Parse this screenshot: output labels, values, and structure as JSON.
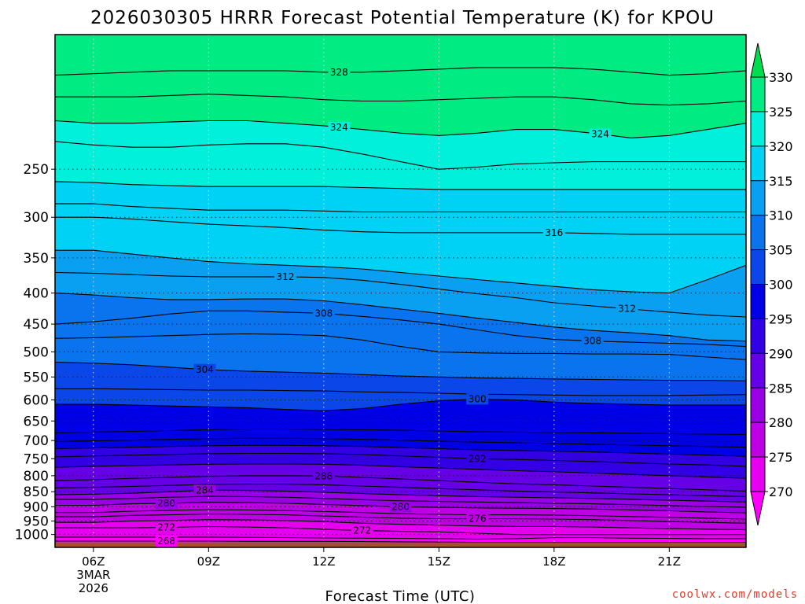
{
  "title": "2026030305 HRRR Forecast Potential Temperature (K) for KPOU",
  "credit": "coolwx.com/models",
  "chart_data": {
    "type": "contour",
    "title": "2026030305 HRRR Forecast Potential Temperature (K) for KPOU",
    "xlabel": "Forecast Time (UTC)",
    "ylabel": "",
    "x_unit": "hour UTC, 3 Mar 2026",
    "xlim": [
      5,
      23
    ],
    "y_unit": "hPa",
    "ylim": [
      1050,
      150
    ],
    "y_scale": "log",
    "x_ticks": [
      {
        "value": 6,
        "label": "06Z",
        "sub": [
          "3MAR",
          "2026"
        ]
      },
      {
        "value": 9,
        "label": "09Z"
      },
      {
        "value": 12,
        "label": "12Z"
      },
      {
        "value": 15,
        "label": "15Z"
      },
      {
        "value": 18,
        "label": "18Z"
      },
      {
        "value": 21,
        "label": "21Z"
      }
    ],
    "y_ticks": [
      {
        "value": 250,
        "label": "250"
      },
      {
        "value": 300,
        "label": "300"
      },
      {
        "value": 350,
        "label": "350"
      },
      {
        "value": 400,
        "label": "400"
      },
      {
        "value": 450,
        "label": "450"
      },
      {
        "value": 500,
        "label": "500"
      },
      {
        "value": 550,
        "label": "550"
      },
      {
        "value": 600,
        "label": "600"
      },
      {
        "value": 650,
        "label": "650"
      },
      {
        "value": 700,
        "label": "700"
      },
      {
        "value": 750,
        "label": "750"
      },
      {
        "value": 800,
        "label": "800"
      },
      {
        "value": 850,
        "label": "850"
      },
      {
        "value": 900,
        "label": "900"
      },
      {
        "value": 950,
        "label": "950"
      },
      {
        "value": 1000,
        "label": "1000"
      }
    ],
    "grid": true,
    "surface_pressure_hPa": 1032,
    "surface_color": "#a0522d",
    "colorbar": {
      "position": "right",
      "ticks": [
        "270",
        "275",
        "280",
        "285",
        "290",
        "295",
        "300",
        "305",
        "310",
        "315",
        "320",
        "325",
        "330"
      ],
      "levels": [
        270,
        275,
        280,
        285,
        290,
        295,
        300,
        305,
        310,
        315,
        320,
        325,
        330
      ],
      "colors": [
        "#ff00ff",
        "#e600f0",
        "#bf00e6",
        "#9900e6",
        "#6600e6",
        "#3300e6",
        "#0000e6",
        "#0a46e8",
        "#0a73ee",
        "#0aa0f2",
        "#00d2f5",
        "#00f0dc",
        "#00eb82",
        "#00dc50"
      ]
    },
    "contour_interval": 2,
    "x": [
      5,
      6,
      7,
      8,
      9,
      10,
      11,
      12,
      13,
      14,
      15,
      16,
      17,
      18,
      19,
      20,
      21,
      22,
      23
    ],
    "series": [
      {
        "name": "268",
        "pressure": [
          1025,
          1025,
          1025,
          1025,
          1025,
          1026,
          1026,
          1026,
          1027,
          1028,
          1029,
          1030,
          1030,
          1030,
          1030,
          1030,
          1030,
          1030,
          1030
        ]
      },
      {
        "name": "270",
        "pressure": [
          1010,
          1010,
          1010,
          1010,
          1010,
          1011,
          1012,
          1013,
          1014,
          1015,
          1016,
          1018,
          1016,
          1012,
          1012,
          1014,
          1015,
          1016,
          1016
        ]
      },
      {
        "name": "272",
        "pressure": [
          975,
          975,
          975,
          973,
          970,
          972,
          975,
          980,
          985,
          988,
          990,
          995,
          1000,
          1000,
          1000,
          1000,
          1000,
          1000,
          1000
        ]
      },
      {
        "name": "274",
        "pressure": [
          955,
          955,
          950,
          948,
          945,
          946,
          948,
          952,
          958,
          962,
          965,
          968,
          970,
          970,
          972,
          975,
          978,
          980,
          982
        ]
      },
      {
        "name": "276",
        "pressure": [
          935,
          935,
          930,
          928,
          925,
          926,
          928,
          932,
          936,
          940,
          942,
          942,
          942,
          943,
          945,
          948,
          952,
          955,
          958
        ]
      },
      {
        "name": "278",
        "pressure": [
          920,
          920,
          915,
          912,
          910,
          911,
          913,
          916,
          920,
          924,
          926,
          928,
          928,
          929,
          931,
          934,
          937,
          940,
          943
        ]
      },
      {
        "name": "280",
        "pressure": [
          895,
          895,
          890,
          888,
          885,
          886,
          888,
          892,
          896,
          900,
          902,
          904,
          905,
          906,
          908,
          911,
          914,
          918,
          921
        ]
      },
      {
        "name": "282",
        "pressure": [
          875,
          875,
          872,
          868,
          865,
          866,
          868,
          872,
          876,
          880,
          882,
          884,
          886,
          888,
          890,
          893,
          896,
          899,
          902
        ]
      },
      {
        "name": "284",
        "pressure": [
          860,
          858,
          855,
          850,
          845,
          846,
          848,
          852,
          856,
          860,
          863,
          866,
          868,
          870,
          872,
          875,
          878,
          881,
          884
        ]
      },
      {
        "name": "286",
        "pressure": [
          838,
          836,
          833,
          830,
          827,
          826,
          826,
          828,
          832,
          836,
          840,
          844,
          848,
          851,
          854,
          857,
          860,
          863,
          866
        ]
      },
      {
        "name": "288",
        "pressure": [
          815,
          812,
          808,
          805,
          802,
          800,
          800,
          801,
          805,
          810,
          815,
          820,
          825,
          828,
          832,
          836,
          840,
          844,
          848
        ]
      },
      {
        "name": "290",
        "pressure": [
          775,
          772,
          770,
          768,
          766,
          765,
          765,
          766,
          769,
          773,
          777,
          781,
          785,
          788,
          792,
          796,
          800,
          804,
          808
        ]
      },
      {
        "name": "292",
        "pressure": [
          745,
          742,
          740,
          738,
          736,
          735,
          735,
          736,
          738,
          742,
          746,
          750,
          752,
          755,
          758,
          762,
          765,
          768,
          772
        ]
      },
      {
        "name": "294",
        "pressure": [
          722,
          720,
          718,
          716,
          714,
          713,
          713,
          714,
          716,
          719,
          722,
          725,
          727,
          729,
          731,
          734,
          737,
          740,
          743
        ]
      },
      {
        "name": "296",
        "pressure": [
          703,
          701,
          699,
          697,
          695,
          694,
          694,
          695,
          697,
          699,
          702,
          704,
          706,
          708,
          710,
          712,
          714,
          716,
          718
        ]
      },
      {
        "name": "298",
        "pressure": [
          680,
          678,
          676,
          674,
          672,
          670,
          670,
          671,
          672,
          673,
          675,
          677,
          678,
          679,
          680,
          681,
          682,
          683,
          684
        ]
      },
      {
        "name": "300",
        "pressure": [
          610,
          610,
          612,
          614,
          616,
          618,
          622,
          625,
          620,
          610,
          602,
          598,
          600,
          605,
          608,
          610,
          612,
          612,
          612
        ]
      },
      {
        "name": "302",
        "pressure": [
          575,
          575,
          576,
          577,
          578,
          578,
          579,
          580,
          582,
          583,
          585,
          587,
          588,
          589,
          590,
          590,
          590,
          589,
          588
        ]
      },
      {
        "name": "304",
        "pressure": [
          520,
          522,
          525,
          530,
          535,
          538,
          540,
          542,
          545,
          548,
          550,
          552,
          553,
          554,
          555,
          556,
          557,
          557,
          558
        ]
      },
      {
        "name": "306",
        "pressure": [
          475,
          474,
          472,
          470,
          468,
          467,
          468,
          470,
          478,
          490,
          500,
          502,
          503,
          503,
          504,
          504,
          505,
          510,
          515
        ]
      },
      {
        "name": "308",
        "pressure": [
          450,
          446,
          440,
          433,
          428,
          428,
          430,
          432,
          437,
          443,
          450,
          460,
          470,
          477,
          480,
          482,
          484,
          486,
          490
        ]
      },
      {
        "name": "310",
        "pressure": [
          400,
          403,
          407,
          410,
          410,
          409,
          409,
          412,
          418,
          425,
          432,
          440,
          447,
          455,
          461,
          465,
          470,
          478,
          480
        ]
      },
      {
        "name": "312",
        "pressure": [
          370,
          371,
          373,
          375,
          376,
          376,
          376,
          377,
          381,
          387,
          394,
          401,
          407,
          415,
          420,
          425,
          430,
          435,
          438
        ]
      },
      {
        "name": "314",
        "pressure": [
          340,
          340,
          345,
          350,
          355,
          358,
          360,
          362,
          365,
          370,
          375,
          380,
          385,
          390,
          395,
          398,
          400,
          380,
          360
        ]
      },
      {
        "name": "316",
        "pressure": [
          300,
          300,
          302,
          305,
          308,
          310,
          312,
          315,
          317,
          318,
          318,
          318,
          318,
          318,
          319,
          320,
          320,
          320,
          320
        ]
      },
      {
        "name": "318",
        "pressure": [
          285,
          285,
          288,
          290,
          292,
          292,
          292,
          293,
          294,
          294,
          294,
          294,
          294,
          294,
          294,
          294,
          294,
          294,
          294
        ]
      },
      {
        "name": "320",
        "pressure": [
          262,
          263,
          265,
          266,
          267,
          267,
          267,
          267,
          268,
          269,
          270,
          270,
          270,
          270,
          270,
          270,
          270,
          270,
          270
        ]
      },
      {
        "name": "322",
        "pressure": [
          225,
          228,
          230,
          230,
          228,
          227,
          227,
          230,
          236,
          243,
          250,
          248,
          245,
          244,
          243,
          243,
          243,
          243,
          243
        ]
      },
      {
        "name": "324",
        "pressure": [
          208,
          210,
          210,
          209,
          208,
          208,
          210,
          212,
          215,
          218,
          220,
          218,
          215,
          215,
          218,
          222,
          220,
          215,
          210
        ]
      },
      {
        "name": "326",
        "pressure": [
          190,
          190,
          190,
          189,
          188,
          189,
          190,
          192,
          193,
          193,
          192,
          191,
          190,
          190,
          192,
          195,
          196,
          195,
          193
        ]
      },
      {
        "name": "328",
        "pressure": [
          175,
          174,
          173,
          172,
          172,
          172,
          172,
          173,
          173,
          172,
          171,
          170,
          170,
          170,
          171,
          173,
          175,
          174,
          172
        ]
      }
    ],
    "contour_labels": [
      {
        "series": "328",
        "x": 12.4
      },
      {
        "series": "324",
        "x": 12.4
      },
      {
        "series": "324",
        "x": 19.2
      },
      {
        "series": "316",
        "x": 18.0
      },
      {
        "series": "312",
        "x": 11.0
      },
      {
        "series": "312",
        "x": 19.9
      },
      {
        "series": "308",
        "x": 12.0
      },
      {
        "series": "308",
        "x": 19.0
      },
      {
        "series": "304",
        "x": 8.9
      },
      {
        "series": "300",
        "x": 16.0
      },
      {
        "series": "292",
        "x": 16.0
      },
      {
        "series": "288",
        "x": 12.0
      },
      {
        "series": "284",
        "x": 8.9
      },
      {
        "series": "280",
        "x": 7.9
      },
      {
        "series": "280",
        "x": 14.0
      },
      {
        "series": "276",
        "x": 16.0
      },
      {
        "series": "272",
        "x": 7.9
      },
      {
        "series": "272",
        "x": 13.0
      },
      {
        "series": "268",
        "x": 7.9
      }
    ]
  }
}
